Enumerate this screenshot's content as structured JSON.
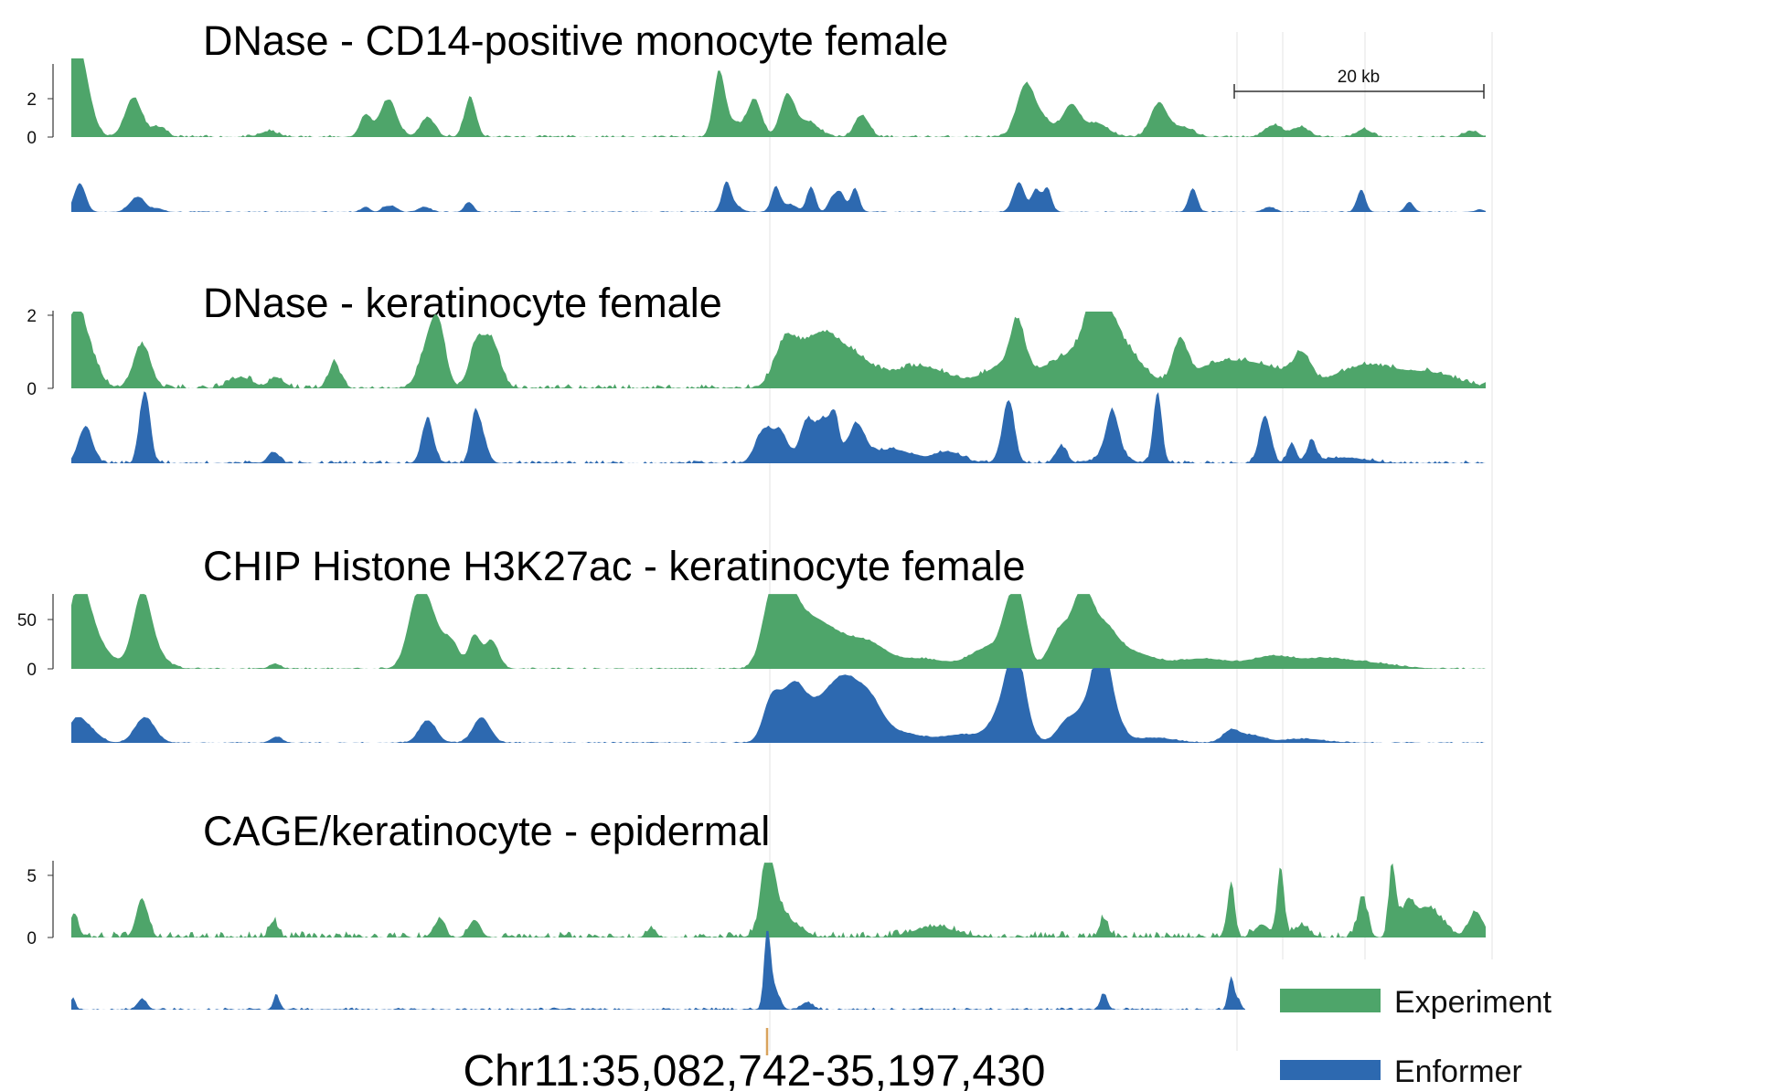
{
  "chart_data": {
    "type": "area",
    "colors": {
      "experiment": "#4ea56a",
      "enformer": "#2d69b0"
    },
    "legend": {
      "position": "bottom-right",
      "entries": [
        {
          "name": "Experiment",
          "color": "#4ea56a"
        },
        {
          "name": "Enformer",
          "color": "#2d69b0"
        }
      ]
    },
    "scale_bar": {
      "label": "20 kb",
      "kb": 20
    },
    "coordinates": "Chr11:35,082,742-35,197,430",
    "tracks": [
      {
        "title": "DNase - CD14-positive monocyte female",
        "yticks": [
          "2",
          "0"
        ],
        "tick_values": [
          2,
          0
        ],
        "ymax": 3.8,
        "enformer_ymax": 3.8,
        "experiment_peaks": [
          [
            0.2,
            1.8,
            0.4
          ],
          [
            0.6,
            3.8,
            0.7
          ],
          [
            4.4,
            2.0,
            0.6
          ],
          [
            6.2,
            0.5,
            0.5
          ],
          [
            14,
            0.3,
            0.6
          ],
          [
            20.8,
            1.1,
            0.4
          ],
          [
            22.4,
            1.9,
            0.6
          ],
          [
            25.2,
            1.0,
            0.5
          ],
          [
            28.2,
            2.0,
            0.4
          ],
          [
            45.8,
            3.2,
            0.4
          ],
          [
            46.8,
            0.7,
            0.6
          ],
          [
            48.3,
            1.9,
            0.5
          ],
          [
            50.6,
            2.0,
            0.5
          ],
          [
            52,
            0.8,
            0.8
          ],
          [
            55.9,
            1.1,
            0.5
          ],
          [
            67.4,
            2.3,
            0.6
          ],
          [
            68.5,
            1.0,
            0.8
          ],
          [
            70.7,
            1.6,
            0.6
          ],
          [
            72.5,
            0.7,
            0.8
          ],
          [
            76.9,
            1.7,
            0.6
          ],
          [
            78.6,
            0.5,
            0.7
          ],
          [
            85,
            0.6,
            0.6
          ],
          [
            86.9,
            0.5,
            0.6
          ],
          [
            91.4,
            0.4,
            0.5
          ],
          [
            99,
            0.3,
            0.5
          ]
        ],
        "enformer_peaks": [
          [
            0.6,
            2.3,
            0.4
          ],
          [
            4.5,
            0.9,
            0.5
          ],
          [
            5,
            0.5,
            0.4
          ],
          [
            6.1,
            0.3,
            0.4
          ],
          [
            20.8,
            0.4,
            0.3
          ],
          [
            22.2,
            0.4,
            0.3
          ],
          [
            22.8,
            0.4,
            0.3
          ],
          [
            25,
            0.4,
            0.4
          ],
          [
            28.1,
            0.8,
            0.3
          ],
          [
            46.3,
            2.1,
            0.3
          ],
          [
            46.8,
            0.6,
            0.5
          ],
          [
            49.8,
            2.0,
            0.3
          ],
          [
            50.8,
            0.6,
            0.5
          ],
          [
            52.3,
            2.0,
            0.3
          ],
          [
            53.8,
            1.1,
            0.3
          ],
          [
            54.4,
            1.5,
            0.3
          ],
          [
            55.4,
            1.9,
            0.3
          ],
          [
            67,
            2.4,
            0.4
          ],
          [
            68.2,
            1.8,
            0.3
          ],
          [
            69,
            1.9,
            0.3
          ],
          [
            79.3,
            1.9,
            0.3
          ],
          [
            84.7,
            0.4,
            0.4
          ],
          [
            91.2,
            1.8,
            0.3
          ],
          [
            94.6,
            0.8,
            0.3
          ],
          [
            99.6,
            0.2,
            0.3
          ]
        ]
      },
      {
        "title": "DNase - keratinocyte female",
        "yticks": [
          "2",
          "0"
        ],
        "tick_values": [
          2,
          0
        ],
        "ymax": 2.0,
        "enformer_ymax": 2.6,
        "experiment_peaks": [
          [
            0.2,
            1.6,
            0.6
          ],
          [
            1.0,
            1.1,
            0.8
          ],
          [
            5,
            1.2,
            0.6
          ],
          [
            12,
            0.3,
            0.8
          ],
          [
            14.5,
            0.3,
            0.5
          ],
          [
            18.6,
            0.7,
            0.4
          ],
          [
            25.4,
            1.3,
            0.7
          ],
          [
            26,
            1.0,
            0.5
          ],
          [
            28.6,
            1.1,
            0.5
          ],
          [
            29.7,
            1.3,
            0.6
          ],
          [
            50.5,
            1.2,
            0.8
          ],
          [
            52.7,
            1.2,
            1.2
          ],
          [
            55,
            0.9,
            1.5
          ],
          [
            60,
            0.6,
            2
          ],
          [
            66,
            0.6,
            1.5
          ],
          [
            66.9,
            1.3,
            0.5
          ],
          [
            71,
            0.9,
            2
          ],
          [
            72.5,
            1.0,
            0.5
          ],
          [
            72.6,
            1.2,
            0.8
          ],
          [
            74,
            1.1,
            1.5
          ],
          [
            78.4,
            1.1,
            0.5
          ],
          [
            81,
            0.6,
            2
          ],
          [
            84.5,
            0.5,
            2
          ],
          [
            87,
            0.7,
            0.6
          ],
          [
            91.5,
            0.6,
            2
          ],
          [
            96,
            0.4,
            2
          ]
        ],
        "enformer_peaks": [
          [
            1,
            1.3,
            0.5
          ],
          [
            5,
            1.6,
            0.3
          ],
          [
            5.4,
            1.6,
            0.3
          ],
          [
            14.3,
            0.4,
            0.4
          ],
          [
            25.2,
            1.6,
            0.4
          ],
          [
            28.5,
            1.4,
            0.3
          ],
          [
            29,
            1.0,
            0.4
          ],
          [
            49,
            1.2,
            0.6
          ],
          [
            50.2,
            1.0,
            0.5
          ],
          [
            52,
            1.5,
            0.5
          ],
          [
            53.2,
            1.5,
            0.5
          ],
          [
            54,
            1.4,
            0.3
          ],
          [
            55.5,
            1.3,
            0.6
          ],
          [
            58,
            0.5,
            1.5
          ],
          [
            62,
            0.4,
            1
          ],
          [
            66,
            0.4,
            0.5
          ],
          [
            66.3,
            1.9,
            0.4
          ],
          [
            70,
            0.6,
            0.4
          ],
          [
            73.6,
            1.3,
            0.4
          ],
          [
            73.6,
            0.6,
            0.8
          ],
          [
            76.8,
            2.5,
            0.3
          ],
          [
            84.4,
            1.7,
            0.4
          ],
          [
            86.3,
            0.7,
            0.3
          ],
          [
            87.7,
            0.8,
            0.3
          ],
          [
            90,
            0.2,
            1.5
          ]
        ]
      },
      {
        "title": "CHIP Histone H3K27ac - keratinocyte female",
        "yticks": [
          "50",
          "0"
        ],
        "tick_values": [
          50,
          0
        ],
        "ymax": 70,
        "enformer_ymax": 70,
        "experiment_peaks": [
          [
            0.5,
            68,
            0.7
          ],
          [
            1.5,
            30,
            1
          ],
          [
            5,
            52,
            0.6
          ],
          [
            5.3,
            25,
            1
          ],
          [
            14.4,
            5,
            0.4
          ],
          [
            24.5,
            58,
            0.7
          ],
          [
            25.5,
            40,
            0.9
          ],
          [
            27,
            18,
            0.5
          ],
          [
            28.5,
            32,
            0.4
          ],
          [
            29.7,
            28,
            0.5
          ],
          [
            49.5,
            55,
            0.7
          ],
          [
            50.5,
            60,
            0.8
          ],
          [
            52,
            35,
            1.2
          ],
          [
            54,
            28,
            1.5
          ],
          [
            56.5,
            18,
            1.2
          ],
          [
            60,
            10,
            2
          ],
          [
            64.8,
            20,
            1.2
          ],
          [
            66.4,
            55,
            0.6
          ],
          [
            67.2,
            45,
            0.5
          ],
          [
            70,
            40,
            0.8
          ],
          [
            71.5,
            60,
            0.6
          ],
          [
            72.8,
            40,
            1
          ],
          [
            75,
            15,
            1.5
          ],
          [
            80,
            10,
            2
          ],
          [
            85,
            12,
            1.5
          ],
          [
            88.5,
            8,
            1.5
          ],
          [
            91.5,
            6,
            2
          ]
        ],
        "enformer_peaks": [
          [
            0.3,
            20,
            0.6
          ],
          [
            1.3,
            12,
            0.7
          ],
          [
            5.2,
            25,
            0.7
          ],
          [
            14.5,
            6,
            0.4
          ],
          [
            25.2,
            22,
            0.6
          ],
          [
            29,
            25,
            0.6
          ],
          [
            49.5,
            40,
            0.6
          ],
          [
            51,
            50,
            0.8
          ],
          [
            52.5,
            25,
            1
          ],
          [
            54,
            30,
            1
          ],
          [
            55,
            38,
            1
          ],
          [
            56.5,
            32,
            0.9
          ],
          [
            58.5,
            10,
            1.5
          ],
          [
            63,
            8,
            1.5
          ],
          [
            66.3,
            42,
            1
          ],
          [
            66.8,
            60,
            0.6
          ],
          [
            70.2,
            14,
            0.6
          ],
          [
            72,
            40,
            1
          ],
          [
            72.8,
            65,
            0.5
          ],
          [
            73.5,
            30,
            0.7
          ],
          [
            76.5,
            5,
            1.5
          ],
          [
            82,
            12,
            0.6
          ],
          [
            83.5,
            7,
            0.8
          ],
          [
            87,
            4,
            1.5
          ]
        ]
      },
      {
        "title": "CAGE/keratinocyte - epidermal",
        "yticks": [
          "5",
          "0"
        ],
        "tick_values": [
          5,
          0
        ],
        "ymax": 6.1,
        "enformer_ymax": 6.1,
        "experiment_peaks": [
          [
            0.2,
            2.1,
            0.3
          ],
          [
            5,
            3.3,
            0.4
          ],
          [
            14.3,
            1.4,
            0.3
          ],
          [
            26,
            1.4,
            0.4
          ],
          [
            28.5,
            1.5,
            0.4
          ],
          [
            41,
            0.8,
            0.3
          ],
          [
            49.2,
            5.6,
            0.4
          ],
          [
            49.6,
            3.0,
            0.7
          ],
          [
            51,
            1.0,
            0.8
          ],
          [
            61,
            0.9,
            1.5
          ],
          [
            73,
            1.6,
            0.3
          ],
          [
            82,
            4.7,
            0.25
          ],
          [
            84.2,
            1.1,
            0.5
          ],
          [
            85.5,
            6.0,
            0.25
          ],
          [
            87,
            1.0,
            0.5
          ],
          [
            91.3,
            3.3,
            0.35
          ],
          [
            93.4,
            6.0,
            0.25
          ],
          [
            94.5,
            3.0,
            0.5
          ],
          [
            95.7,
            1.5,
            0.6
          ],
          [
            96.5,
            1.5,
            0.8
          ],
          [
            99.3,
            2.2,
            0.5
          ]
        ],
        "enformer_peaks": [
          [
            0.1,
            0.9,
            0.2
          ],
          [
            5,
            0.9,
            0.3
          ],
          [
            14.5,
            1.3,
            0.2
          ],
          [
            49.2,
            6.1,
            0.2
          ],
          [
            49.6,
            2.0,
            0.4
          ],
          [
            52,
            0.6,
            0.4
          ],
          [
            73,
            1.3,
            0.25
          ],
          [
            82,
            2.7,
            0.2
          ],
          [
            82.5,
            0.8,
            0.2
          ]
        ]
      }
    ]
  }
}
